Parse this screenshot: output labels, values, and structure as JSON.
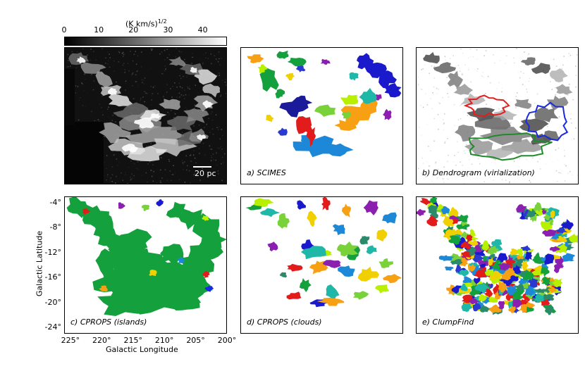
{
  "colorbar": {
    "label_main": "(K km/s)",
    "label_sup": "1/2",
    "ticks": [
      "0",
      "10",
      "20",
      "30",
      "40"
    ],
    "tick_values": [
      0,
      10,
      20,
      30,
      40
    ],
    "max_value": 47
  },
  "panels": {
    "image": {
      "scalebar_label": "20 pc"
    },
    "a": {
      "label": "a) SCIMES"
    },
    "b": {
      "label": "b) Dendrogram (virialization)"
    },
    "c": {
      "label": "c) CPROPS (islands)"
    },
    "d": {
      "label": "d) CPROPS (clouds)"
    },
    "e": {
      "label": "e) ClumpFind"
    }
  },
  "axes": {
    "ylabel": "Galactic Latitude",
    "xlabel": "Galactic Longitude",
    "yticks": [
      "-4°",
      "-8°",
      "-12°",
      "-16°",
      "-20°",
      "-24°"
    ],
    "ytick_values": [
      -4,
      -8,
      -12,
      -16,
      -20,
      -24
    ],
    "xticks": [
      "225°",
      "220°",
      "215°",
      "210°",
      "205°",
      "200°"
    ],
    "xtick_values": [
      225,
      220,
      215,
      210,
      205,
      200
    ],
    "xlim": [
      226,
      200
    ],
    "ylim": [
      -25,
      -3
    ]
  },
  "colors": {
    "cloud_green": "#14a03c",
    "scimes_blue": "#1a1acc",
    "scimes_light_blue": "#1e88d8",
    "scimes_orange": "#f7a014",
    "scimes_red": "#e21b1b",
    "scimes_navy": "#1a1a9a",
    "dendro_red": "#e02020",
    "dendro_blue": "#1a2ae0",
    "dendro_green": "#1f8a2a"
  }
}
